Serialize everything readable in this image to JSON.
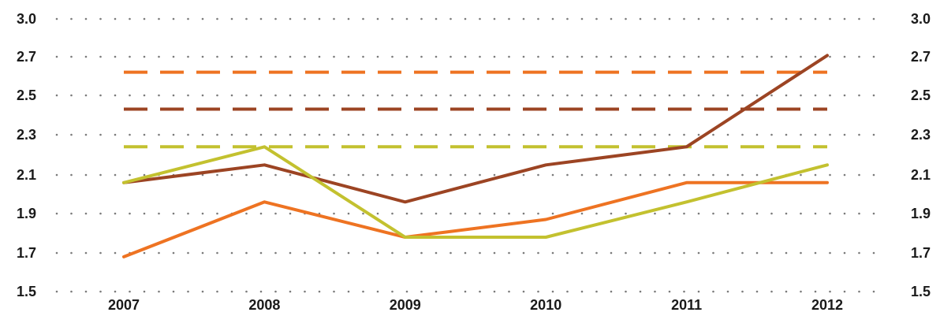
{
  "chart_data": {
    "type": "line",
    "title": "",
    "xlabel": "",
    "ylabel": "",
    "categories": [
      "2007",
      "2008",
      "2009",
      "2010",
      "2011",
      "2012"
    ],
    "ylim": [
      1.5,
      3.0
    ],
    "y_ticks": [
      {
        "value": 1.5,
        "label": "1.5"
      },
      {
        "value": 1.7,
        "label": "1.7"
      },
      {
        "value": 1.9,
        "label": "1.9"
      },
      {
        "value": 2.1,
        "label": "2.1"
      },
      {
        "value": 2.3,
        "label": "2.3"
      },
      {
        "value": 2.5,
        "label": "2.5"
      },
      {
        "value": 2.7,
        "label": "2.7"
      },
      {
        "value": 3.0,
        "label": "3.0"
      }
    ],
    "grid": "dotted horizontal",
    "dual_y_axis_labels": true,
    "legend": "none",
    "series": [
      {
        "color": "#9c4423",
        "style": "solid",
        "values": [
          2.06,
          2.15,
          1.96,
          2.15,
          2.24,
          2.71
        ]
      },
      {
        "color": "#ee7322",
        "style": "solid",
        "values": [
          1.68,
          1.96,
          1.78,
          1.87,
          2.06,
          2.06
        ]
      },
      {
        "color": "#c3c12f",
        "style": "solid",
        "values": [
          2.06,
          2.24,
          1.78,
          1.78,
          1.96,
          2.15
        ]
      },
      {
        "color": "#ee7322",
        "style": "dashed",
        "values": [
          2.62,
          2.62,
          2.62,
          2.62,
          2.62,
          2.62
        ]
      },
      {
        "color": "#9c4423",
        "style": "dashed",
        "values": [
          2.43,
          2.43,
          2.43,
          2.43,
          2.43,
          2.43
        ]
      },
      {
        "color": "#c3c12f",
        "style": "dashed",
        "values": [
          2.24,
          2.24,
          2.24,
          2.24,
          2.24,
          2.24
        ]
      }
    ]
  }
}
